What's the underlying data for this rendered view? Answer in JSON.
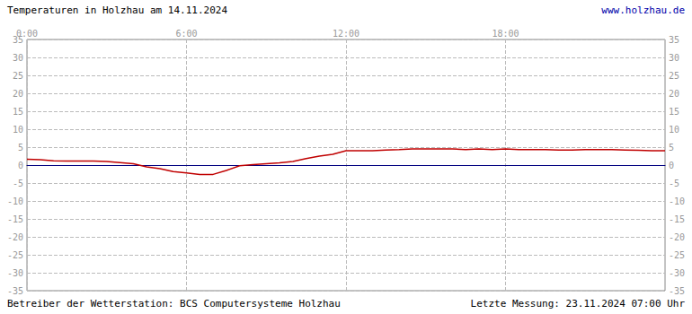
{
  "chart_data": {
    "type": "line",
    "title": "Temperaturen in Holzhau am 14.11.2024",
    "annotations": [
      "www.holzhau.de",
      "Betreiber der Wetterstation: BCS Computersysteme Holzhau",
      "Letzte Messung: 23.11.2024 07:00 Uhr"
    ],
    "x": [
      0,
      0.5,
      1,
      1.5,
      2,
      2.5,
      3,
      3.5,
      4,
      4.5,
      5,
      5.5,
      6,
      6.5,
      7,
      7.5,
      8,
      8.5,
      9,
      9.5,
      10,
      10.5,
      11,
      11.5,
      12,
      12.5,
      13,
      13.5,
      14,
      14.5,
      15,
      15.5,
      16,
      16.5,
      17,
      17.5,
      18,
      18.5,
      19,
      19.5,
      20,
      20.5,
      21,
      21.5,
      22,
      22.5,
      23,
      23.5,
      24
    ],
    "values": [
      1.6,
      1.5,
      1.2,
      1.1,
      1.1,
      1.1,
      1.0,
      0.7,
      0.4,
      -0.5,
      -1.0,
      -1.8,
      -2.2,
      -2.6,
      -2.6,
      -1.5,
      -0.2,
      0.1,
      0.4,
      0.6,
      1.0,
      1.8,
      2.5,
      3.0,
      4.0,
      4.0,
      4.0,
      4.2,
      4.3,
      4.5,
      4.5,
      4.5,
      4.5,
      4.3,
      4.5,
      4.3,
      4.5,
      4.3,
      4.3,
      4.3,
      4.2,
      4.2,
      4.3,
      4.3,
      4.3,
      4.2,
      4.1,
      4.0,
      4.0
    ],
    "color": "#c00000",
    "xlim": [
      0,
      24
    ],
    "xticks": [
      {
        "value": 0,
        "label": "0:00"
      },
      {
        "value": 6,
        "label": "6:00"
      },
      {
        "value": 12,
        "label": "12:00"
      },
      {
        "value": 18,
        "label": "18:00"
      }
    ],
    "ylim": [
      -35,
      35
    ],
    "yticks": [
      -35,
      -30,
      -25,
      -20,
      -15,
      -10,
      -5,
      0,
      5,
      10,
      15,
      20,
      25,
      30,
      35
    ],
    "grid": true
  }
}
